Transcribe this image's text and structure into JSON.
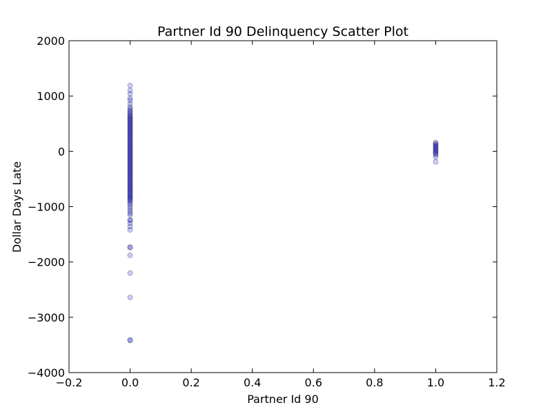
{
  "chart_data": {
    "type": "scatter",
    "title": "Partner Id 90 Delinquency Scatter Plot",
    "xlabel": "Partner Id 90",
    "ylabel": "Dollar Days Late",
    "xlim": [
      -0.2,
      1.2
    ],
    "ylim": [
      -4000,
      2000
    ],
    "xticks": [
      -0.2,
      0.0,
      0.2,
      0.4,
      0.6,
      0.8,
      1.0,
      1.2
    ],
    "xtick_labels": [
      "−0.2",
      "0.0",
      "0.2",
      "0.4",
      "0.6",
      "0.8",
      "1.0",
      "1.2"
    ],
    "yticks": [
      -4000,
      -3000,
      -2000,
      -1000,
      0,
      1000,
      2000
    ],
    "ytick_labels": [
      "−4000",
      "−3000",
      "−2000",
      "−1000",
      "0",
      "1000",
      "2000"
    ],
    "grid": false,
    "marker_color": "#0000ff",
    "marker_alpha": 0.2,
    "points": [
      {
        "x": 0,
        "y": 1190
      },
      {
        "x": 0,
        "y": 1100
      },
      {
        "x": 0,
        "y": 1040
      },
      {
        "x": 0,
        "y": 960
      },
      {
        "x": 0,
        "y": 920
      },
      {
        "x": 0,
        "y": 860
      },
      {
        "x": 0,
        "y": 800
      },
      {
        "x": 0,
        "y": 770
      },
      {
        "x": 0,
        "y": 740
      },
      {
        "x": 0,
        "y": 710
      },
      {
        "x": 0,
        "y": 690
      },
      {
        "x": 0,
        "y": 660
      },
      {
        "x": 0,
        "y": 640
      },
      {
        "x": 0,
        "y": 620
      },
      {
        "x": 0,
        "y": 600
      },
      {
        "x": 0,
        "y": 580
      },
      {
        "x": 0,
        "y": 560
      },
      {
        "x": 0,
        "y": 540
      },
      {
        "x": 0,
        "y": 520
      },
      {
        "x": 0,
        "y": 500
      },
      {
        "x": 0,
        "y": 480
      },
      {
        "x": 0,
        "y": 460
      },
      {
        "x": 0,
        "y": 440
      },
      {
        "x": 0,
        "y": 420
      },
      {
        "x": 0,
        "y": 400
      },
      {
        "x": 0,
        "y": 380
      },
      {
        "x": 0,
        "y": 360
      },
      {
        "x": 0,
        "y": 340
      },
      {
        "x": 0,
        "y": 320
      },
      {
        "x": 0,
        "y": 300
      },
      {
        "x": 0,
        "y": 280
      },
      {
        "x": 0,
        "y": 260
      },
      {
        "x": 0,
        "y": 240
      },
      {
        "x": 0,
        "y": 220
      },
      {
        "x": 0,
        "y": 200
      },
      {
        "x": 0,
        "y": 180
      },
      {
        "x": 0,
        "y": 160
      },
      {
        "x": 0,
        "y": 140
      },
      {
        "x": 0,
        "y": 120
      },
      {
        "x": 0,
        "y": 100
      },
      {
        "x": 0,
        "y": 80
      },
      {
        "x": 0,
        "y": 60
      },
      {
        "x": 0,
        "y": 40
      },
      {
        "x": 0,
        "y": 20
      },
      {
        "x": 0,
        "y": 0
      },
      {
        "x": 0,
        "y": -20
      },
      {
        "x": 0,
        "y": -40
      },
      {
        "x": 0,
        "y": -60
      },
      {
        "x": 0,
        "y": -80
      },
      {
        "x": 0,
        "y": -100
      },
      {
        "x": 0,
        "y": -120
      },
      {
        "x": 0,
        "y": -140
      },
      {
        "x": 0,
        "y": -160
      },
      {
        "x": 0,
        "y": -180
      },
      {
        "x": 0,
        "y": -200
      },
      {
        "x": 0,
        "y": -220
      },
      {
        "x": 0,
        "y": -240
      },
      {
        "x": 0,
        "y": -260
      },
      {
        "x": 0,
        "y": -280
      },
      {
        "x": 0,
        "y": -300
      },
      {
        "x": 0,
        "y": -320
      },
      {
        "x": 0,
        "y": -340
      },
      {
        "x": 0,
        "y": -360
      },
      {
        "x": 0,
        "y": -380
      },
      {
        "x": 0,
        "y": -400
      },
      {
        "x": 0,
        "y": -420
      },
      {
        "x": 0,
        "y": -440
      },
      {
        "x": 0,
        "y": -460
      },
      {
        "x": 0,
        "y": -480
      },
      {
        "x": 0,
        "y": -500
      },
      {
        "x": 0,
        "y": -520
      },
      {
        "x": 0,
        "y": -540
      },
      {
        "x": 0,
        "y": -560
      },
      {
        "x": 0,
        "y": -580
      },
      {
        "x": 0,
        "y": -600
      },
      {
        "x": 0,
        "y": -620
      },
      {
        "x": 0,
        "y": -640
      },
      {
        "x": 0,
        "y": -660
      },
      {
        "x": 0,
        "y": -680
      },
      {
        "x": 0,
        "y": -700
      },
      {
        "x": 0,
        "y": -720
      },
      {
        "x": 0,
        "y": -740
      },
      {
        "x": 0,
        "y": -760
      },
      {
        "x": 0,
        "y": -780
      },
      {
        "x": 0,
        "y": -800
      },
      {
        "x": 0,
        "y": -820
      },
      {
        "x": 0,
        "y": -840
      },
      {
        "x": 0,
        "y": -860
      },
      {
        "x": 0,
        "y": -880
      },
      {
        "x": 0,
        "y": -900
      },
      {
        "x": 0,
        "y": -930
      },
      {
        "x": 0,
        "y": -960
      },
      {
        "x": 0,
        "y": -1000
      },
      {
        "x": 0,
        "y": -1040
      },
      {
        "x": 0,
        "y": -1080
      },
      {
        "x": 0,
        "y": -1120
      },
      {
        "x": 0,
        "y": -1150
      },
      {
        "x": 0,
        "y": -1240
      },
      {
        "x": 0,
        "y": -1250
      },
      {
        "x": 0,
        "y": -1300
      },
      {
        "x": 0,
        "y": -1360
      },
      {
        "x": 0,
        "y": -1420
      },
      {
        "x": 0,
        "y": -1730
      },
      {
        "x": 0,
        "y": -1740
      },
      {
        "x": 0,
        "y": -1880
      },
      {
        "x": 0,
        "y": -2200
      },
      {
        "x": 0,
        "y": -2640
      },
      {
        "x": 0,
        "y": -3410
      },
      {
        "x": 0,
        "y": -3420
      },
      {
        "x": 1,
        "y": 160
      },
      {
        "x": 1,
        "y": 140
      },
      {
        "x": 1,
        "y": 120
      },
      {
        "x": 1,
        "y": 100
      },
      {
        "x": 1,
        "y": 80
      },
      {
        "x": 1,
        "y": 60
      },
      {
        "x": 1,
        "y": 40
      },
      {
        "x": 1,
        "y": 20
      },
      {
        "x": 1,
        "y": 0
      },
      {
        "x": 1,
        "y": -20
      },
      {
        "x": 1,
        "y": -40
      },
      {
        "x": 1,
        "y": -60
      },
      {
        "x": 1,
        "y": -100
      },
      {
        "x": 1,
        "y": -190
      }
    ]
  }
}
